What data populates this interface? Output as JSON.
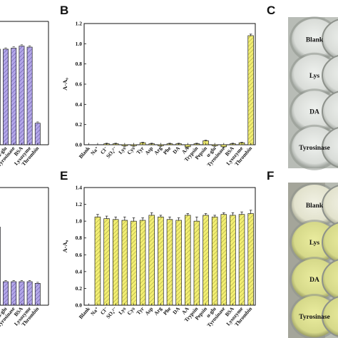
{
  "colors": {
    "purple_bar": "#b3a6e8",
    "yellow_bar": "#f2ee72",
    "bar_edge": "#222222",
    "hatch": "#555555"
  },
  "panels": {
    "b": "B",
    "c": "C",
    "e": "E",
    "f": "F"
  },
  "photos": {
    "top_labels": [
      "Blank",
      "Lys",
      "DA",
      "Tyrosinase"
    ],
    "bottom_labels": [
      "Blank",
      "Lys",
      "DA",
      "Tyrosinase"
    ]
  },
  "chart_data": [
    {
      "id": "A",
      "type": "bar",
      "note": "partially cropped at left edge",
      "categories": [
        "α-glu",
        "Tyrosinase",
        "BSA",
        "Lysozyme",
        "Thrombin"
      ],
      "values": [
        0.93,
        0.94,
        0.96,
        0.95,
        0.21
      ],
      "color": "#b3a6e8"
    },
    {
      "id": "D",
      "type": "bar",
      "note": "partially cropped at left edge",
      "categories": [
        "α-glu",
        "Tyrosinase",
        "BSA",
        "Lysozyme",
        "Thrombin"
      ],
      "values": [
        0.28,
        0.28,
        0.28,
        0.28,
        0.26
      ],
      "color": "#b3a6e8"
    },
    {
      "id": "B",
      "type": "bar",
      "ylabel": "A-A₀",
      "ylim": [
        0,
        1.2
      ],
      "yticks": [
        "0.0",
        "0.2",
        "0.4",
        "0.6",
        "0.8",
        "1.0",
        "1.2"
      ],
      "categories": [
        "Blank",
        "Na⁺",
        "Cl⁻",
        "SO₄²⁻",
        "Lys",
        "Cys",
        "Tyr",
        "Asp",
        "Arg",
        "Phe",
        "DA",
        "AA",
        "Trypsin",
        "Pepsin",
        "α-glu",
        "Tyrosinase",
        "BSA",
        "Lysozyme",
        "Thrombin"
      ],
      "values": [
        0.0,
        0.0,
        0.01,
        0.01,
        -0.01,
        -0.01,
        0.02,
        0.01,
        -0.01,
        0.01,
        0.01,
        -0.02,
        0.01,
        0.04,
        -0.01,
        -0.02,
        0.01,
        0.02,
        1.08
      ],
      "errors": [
        0.0,
        0.005,
        0.005,
        0.005,
        0.005,
        0.005,
        0.005,
        0.005,
        0.005,
        0.005,
        0.005,
        0.005,
        0.005,
        0.005,
        0.005,
        0.005,
        0.005,
        0.005,
        0.015
      ],
      "color": "#f2ee72"
    },
    {
      "id": "E",
      "type": "bar",
      "ylabel": "A-A₀",
      "ylim": [
        0,
        1.4
      ],
      "yticks": [
        "0.0",
        "0.2",
        "0.4",
        "0.6",
        "0.8",
        "1.0",
        "1.2",
        "1.4"
      ],
      "categories": [
        "Blank",
        "Na⁺",
        "Cl⁻",
        "SO₄²⁻",
        "Lys",
        "Cys",
        "Tyr",
        "Asp",
        "Arg",
        "Phe",
        "DA",
        "AA",
        "Trypsin",
        "Pepsin",
        "α-glu",
        "Tyrosinase",
        "BSA",
        "Lysozyme",
        "Thrombin"
      ],
      "values": [
        0.0,
        1.05,
        1.03,
        1.02,
        1.01,
        1.0,
        1.01,
        1.07,
        1.05,
        1.02,
        1.01,
        1.07,
        1.0,
        1.07,
        1.05,
        1.08,
        1.07,
        1.08,
        1.09
      ],
      "errors": [
        0.0,
        0.03,
        0.03,
        0.03,
        0.04,
        0.04,
        0.03,
        0.03,
        0.02,
        0.03,
        0.03,
        0.02,
        0.05,
        0.02,
        0.02,
        0.02,
        0.03,
        0.03,
        0.04
      ],
      "color": "#f2ee72"
    }
  ]
}
